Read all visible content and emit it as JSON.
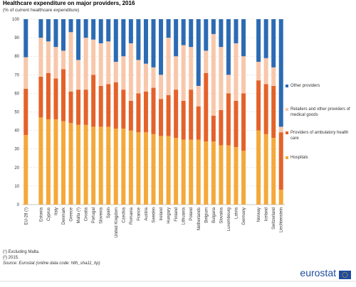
{
  "chart_data": {
    "type": "bar",
    "stacked": true,
    "title": "Healthcare expenditure on major providers, 2016",
    "subtitle": "(% of current healthcare expenditure)",
    "categories": [
      "EU-28 (¹)",
      null,
      "Estonia",
      "Cyprus",
      "Italy",
      "Denmark",
      "Greece",
      "Malta (²)",
      "Croatia",
      "Portugal",
      "Slovenia",
      "Spain",
      "United Kingdom",
      "Czechia",
      "Romania",
      "France",
      "Austria",
      "Sweden",
      "Ireland",
      "Hungary",
      "Finland",
      "Lithuania",
      "Poland",
      "Netherlands",
      "Belgium",
      "Bulgaria",
      "Slovakia",
      "Luxembourg",
      "Latvia",
      "Germany",
      null,
      "Norway",
      "Iceland",
      "Switzerland",
      "Liechtenstein"
    ],
    "series": [
      {
        "name": "Hospitals",
        "color": "#f4a93a",
        "values": [
          37.5,
          null,
          47,
          46,
          46,
          45,
          44,
          43,
          43,
          42,
          42,
          42,
          41,
          41,
          40,
          39,
          39,
          38,
          37,
          37,
          36,
          35,
          35,
          35,
          34,
          34,
          32,
          32,
          31,
          29,
          null,
          40,
          38,
          36,
          8
        ]
      },
      {
        "name": "Providers of ambulatory health care",
        "color": "#e4622a",
        "values": [
          25,
          null,
          22,
          25,
          22,
          28,
          17,
          19,
          19,
          28,
          22,
          23,
          25,
          21,
          16,
          21,
          22,
          25,
          20,
          22,
          26,
          21,
          27,
          18,
          37,
          14,
          19,
          28,
          25,
          31,
          null,
          27,
          27,
          28,
          31
        ]
      },
      {
        "name": "Retailers and other providers of medical goods",
        "color": "#f8c7aa",
        "values": [
          17,
          null,
          21,
          17,
          17,
          10,
          32,
          16,
          28,
          19,
          23,
          23,
          11,
          18,
          31,
          18,
          15,
          11,
          13,
          31,
          18,
          30,
          23,
          11,
          12,
          44,
          34,
          10,
          31,
          20,
          null,
          10,
          14,
          10,
          3
        ]
      },
      {
        "name": "Other providers",
        "color": "#2c6bb3",
        "values": [
          20.5,
          null,
          10,
          12,
          15,
          17,
          7,
          22,
          10,
          11,
          13,
          12,
          23,
          20,
          13,
          22,
          24,
          26,
          30,
          10,
          20,
          14,
          15,
          36,
          17,
          8,
          15,
          30,
          13,
          20,
          null,
          23,
          21,
          26,
          58
        ]
      }
    ],
    "ylim": [
      0,
      100
    ],
    "yticks": [
      0,
      10,
      20,
      30,
      40,
      50,
      60,
      70,
      80,
      90,
      100
    ],
    "grid": true,
    "footnotes": [
      "(¹) Excluding Malta.",
      "(²) 2015.",
      "Source: Eurostat (online data code: hlth_sha11_hp)"
    ],
    "logo": "eurostat"
  }
}
